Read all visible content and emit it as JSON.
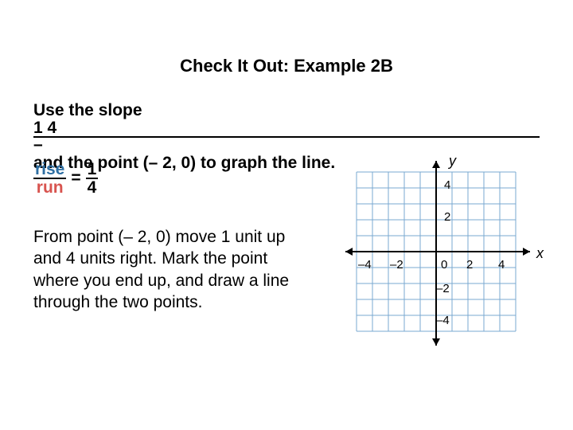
{
  "title": "Check It Out: Example 2B",
  "prompt_pre": "Use the slope ",
  "prompt_num": "1 4",
  "prompt_den": "– ",
  "prompt_post": "and the point (– 2, 0) to graph the line.",
  "rise": "rise",
  "run": "run",
  "eq": "=",
  "frac_top": "1",
  "frac_bot": "4",
  "explain": "From point (– 2, 0) move 1 unit up and 4 units right. Mark the point where you end up, and draw a line through the two points.",
  "axis_x": "x",
  "axis_y": "y",
  "ticks": {
    "n4x": "–4",
    "n2x": "–2",
    "p2x": "2",
    "p4x": "4",
    "p4y": "4",
    "p2y": "2",
    "n2y": "–2",
    "n4y": "–4",
    "zero": "0"
  },
  "graph": {
    "grid_color": "#7aa8d0",
    "axis_color": "#000000",
    "cell": 20,
    "range": [
      -5,
      5
    ]
  }
}
